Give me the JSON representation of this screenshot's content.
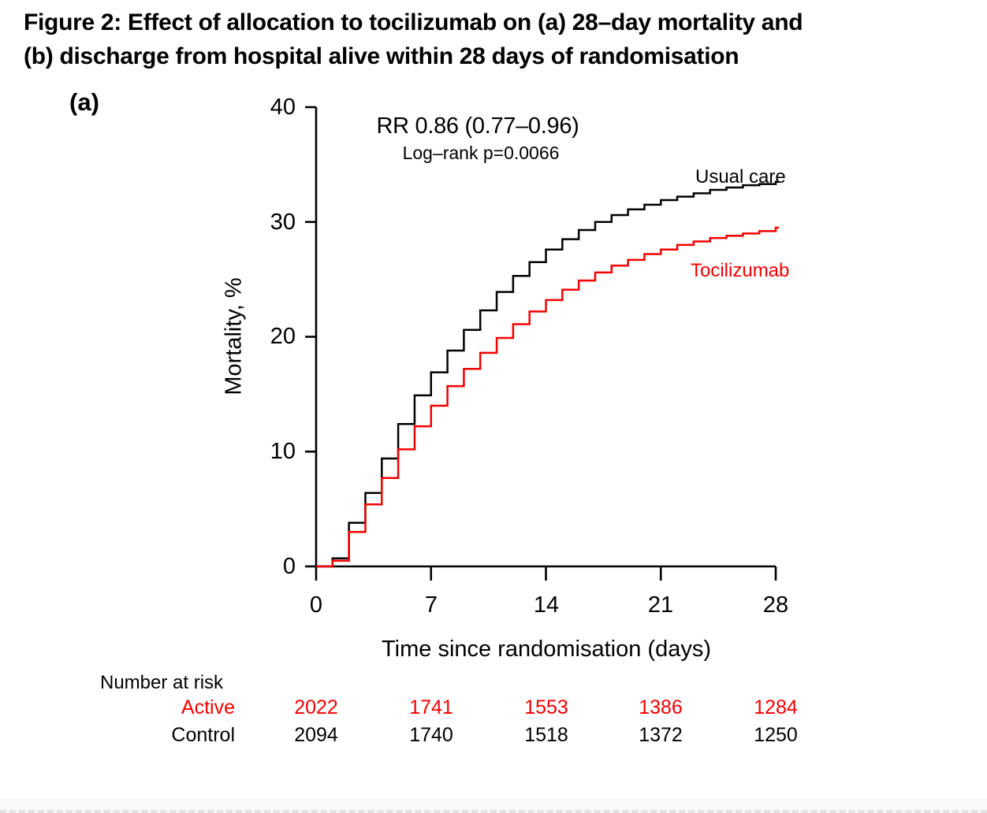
{
  "title": {
    "line1": "Figure 2: Effect of allocation to tocilizumab on (a) 28–day mortality and",
    "line2": "(b) discharge from hospital alive within 28 days of randomisation"
  },
  "panel": {
    "label": "(a)"
  },
  "annotation": {
    "rr": "RR 0.86 (0.77–0.96)",
    "logrank": "Log–rank p=0.0066"
  },
  "risk": {
    "header": "Number at risk",
    "rows": [
      {
        "label": "Active",
        "color": "#f40000",
        "values": [
          "2022",
          "1741",
          "1553",
          "1386",
          "1284"
        ]
      },
      {
        "label": "Control",
        "color": "#000000",
        "values": [
          "2094",
          "1740",
          "1518",
          "1372",
          "1250"
        ]
      }
    ]
  },
  "chart_data": {
    "type": "line",
    "step": "post",
    "title": "",
    "xlabel": "Time since randomisation (days)",
    "ylabel": "Mortality, %",
    "xlim": [
      0,
      28
    ],
    "ylim": [
      0,
      40
    ],
    "x_ticks": [
      0,
      7,
      14,
      21,
      28
    ],
    "y_ticks": [
      0,
      10,
      20,
      30,
      40
    ],
    "x_tick_labels": [
      "0",
      "7",
      "14",
      "21",
      "28"
    ],
    "y_tick_labels": [
      "0",
      "10",
      "20",
      "30",
      "40"
    ],
    "grid": false,
    "legend_position": "on-curve-labels",
    "x": [
      0,
      1,
      2,
      3,
      4,
      5,
      6,
      7,
      8,
      9,
      10,
      11,
      12,
      13,
      14,
      15,
      16,
      17,
      18,
      19,
      20,
      21,
      22,
      23,
      24,
      25,
      26,
      27,
      28
    ],
    "series": [
      {
        "name": "Usual care",
        "color": "#000000",
        "values": [
          0,
          0.7,
          3.8,
          6.4,
          9.4,
          12.4,
          14.9,
          16.9,
          18.8,
          20.6,
          22.3,
          23.9,
          25.3,
          26.5,
          27.6,
          28.5,
          29.3,
          30.0,
          30.6,
          31.1,
          31.5,
          31.9,
          32.2,
          32.5,
          32.8,
          33.0,
          33.2,
          33.3,
          33.5
        ]
      },
      {
        "name": "Tocilizumab",
        "color": "#f40000",
        "values": [
          0,
          0.5,
          3.0,
          5.4,
          7.7,
          10.2,
          12.2,
          14.0,
          15.7,
          17.2,
          18.6,
          19.9,
          21.1,
          22.2,
          23.2,
          24.1,
          24.9,
          25.6,
          26.2,
          26.7,
          27.2,
          27.6,
          28.0,
          28.3,
          28.6,
          28.8,
          29.0,
          29.2,
          29.5
        ]
      }
    ]
  }
}
